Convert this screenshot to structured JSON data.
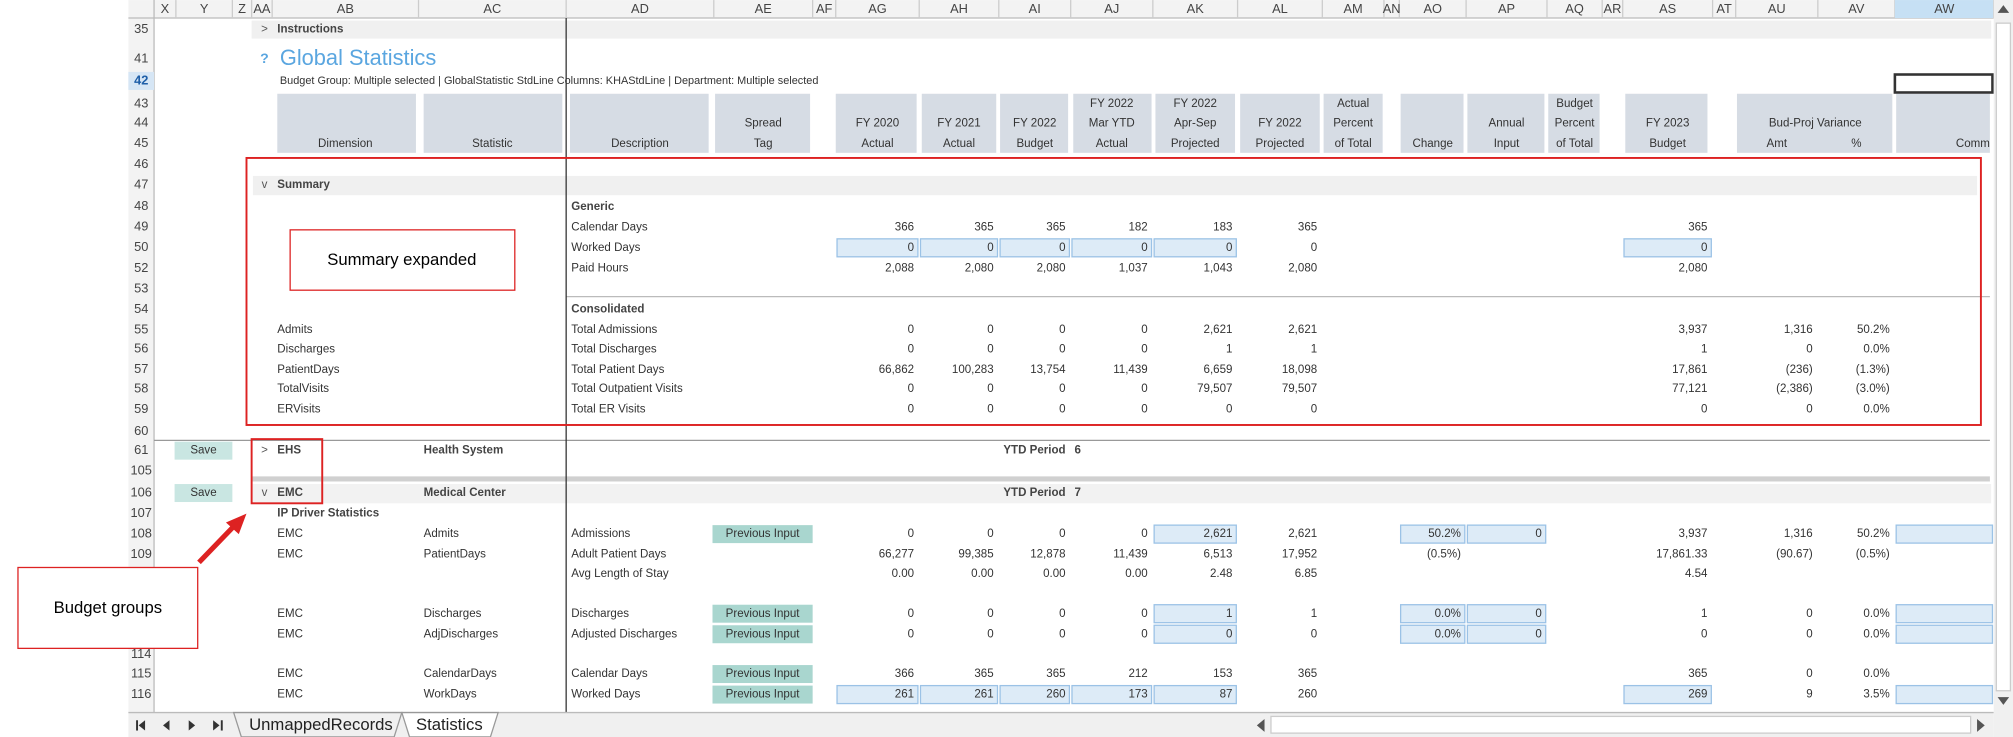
{
  "column_headers": [
    "X",
    "Y",
    "Z",
    "AA",
    "AB",
    "AC",
    "AD",
    "AE",
    "AF",
    "AG",
    "AH",
    "AI",
    "AJ",
    "AK",
    "AL",
    "AM",
    "AN",
    "AO",
    "AP",
    "AQ",
    "AR",
    "AS",
    "AT",
    "AU",
    "AV",
    "AW"
  ],
  "header": [
    {
      "col": "AB",
      "lines": [
        "Dimension"
      ]
    },
    {
      "col": "AC",
      "lines": [
        "Statistic"
      ]
    },
    {
      "col": "AD",
      "lines": [
        "Description"
      ]
    },
    {
      "col": "AE",
      "lines": [
        "Spread",
        "Tag"
      ]
    },
    {
      "col": "AG",
      "lines": [
        "FY 2020",
        "Actual"
      ]
    },
    {
      "col": "AH",
      "lines": [
        "FY 2021",
        "Actual"
      ]
    },
    {
      "col": "AI",
      "lines": [
        "FY 2022",
        "Budget"
      ]
    },
    {
      "col": "AJ",
      "lines": [
        "FY 2022",
        "Mar YTD",
        "Actual"
      ]
    },
    {
      "col": "AK",
      "lines": [
        "FY 2022",
        "Apr-Sep",
        "Projected"
      ]
    },
    {
      "col": "AL",
      "lines": [
        "FY 2022",
        "Projected"
      ]
    },
    {
      "col": "AM",
      "lines": [
        "Actual",
        "Percent",
        "of Total"
      ]
    },
    {
      "col": "AO",
      "lines": [
        "Change"
      ]
    },
    {
      "col": "AP",
      "lines": [
        "Annual",
        "Input"
      ]
    },
    {
      "col": "AQ",
      "lines": [
        "Budget",
        "Percent",
        "of Total"
      ]
    },
    {
      "col": "AS",
      "lines": [
        "FY 2023",
        "Budget"
      ]
    },
    {
      "col": "AU",
      "lines": [
        "Amt"
      ]
    },
    {
      "col": "AV",
      "lines": [
        "%"
      ]
    },
    {
      "col": "AW",
      "lines": [
        "Comm"
      ]
    }
  ],
  "variance_header": "Bud-Proj Variance",
  "rows": [
    {
      "num": "35",
      "cells": {
        "AA": ">",
        "AB": "Instructions"
      }
    },
    {
      "num": "41",
      "cells": {
        "AA": "?",
        "AB": "Global Statistics"
      }
    },
    {
      "num": "42",
      "cells": {
        "AB": "Budget Group: Multiple selected | GlobalStatistic StdLine Columns: KHAStdLine | Department: Multiple selected"
      }
    },
    {
      "num": "43"
    },
    {
      "num": "44"
    },
    {
      "num": "45"
    },
    {
      "num": "46"
    },
    {
      "num": "47",
      "cells": {
        "AA": "v",
        "AB": "Summary"
      }
    },
    {
      "num": "48",
      "cells": {
        "AD": "Generic"
      }
    },
    {
      "num": "49",
      "cells": {
        "AD": "Calendar Days",
        "AG": "366",
        "AH": "365",
        "AI": "365",
        "AJ": "182",
        "AK": "183",
        "AL": "365",
        "AS": "365"
      }
    },
    {
      "num": "50",
      "cells": {
        "AD": "Worked Days",
        "AG": "0",
        "AH": "0",
        "AI": "0",
        "AJ": "0",
        "AK": "0",
        "AL": "0",
        "AS": "0"
      }
    },
    {
      "num": "52",
      "cells": {
        "AD": "Paid Hours",
        "AG": "2,088",
        "AH": "2,080",
        "AI": "2,080",
        "AJ": "1,037",
        "AK": "1,043",
        "AL": "2,080",
        "AS": "2,080"
      }
    },
    {
      "num": "53"
    },
    {
      "num": "54",
      "cells": {
        "AD": "Consolidated"
      }
    },
    {
      "num": "55",
      "cells": {
        "AB": "Admits",
        "AD": "Total Admissions",
        "AG": "0",
        "AH": "0",
        "AI": "0",
        "AJ": "0",
        "AK": "2,621",
        "AL": "2,621",
        "AS": "3,937",
        "AU": "1,316",
        "AV": "50.2%"
      }
    },
    {
      "num": "56",
      "cells": {
        "AB": "Discharges",
        "AD": "Total Discharges",
        "AG": "0",
        "AH": "0",
        "AI": "0",
        "AJ": "0",
        "AK": "1",
        "AL": "1",
        "AS": "1",
        "AU": "0",
        "AV": "0.0%"
      }
    },
    {
      "num": "57",
      "cells": {
        "AB": "PatientDays",
        "AD": "Total Patient Days",
        "AG": "66,862",
        "AH": "100,283",
        "AI": "13,754",
        "AJ": "11,439",
        "AK": "6,659",
        "AL": "18,098",
        "AS": "17,861",
        "AU": "(236)",
        "AV": "(1.3%)"
      }
    },
    {
      "num": "58",
      "cells": {
        "AB": "TotalVisits",
        "AD": "Total Outpatient Visits",
        "AG": "0",
        "AH": "0",
        "AI": "0",
        "AJ": "0",
        "AK": "79,507",
        "AL": "79,507",
        "AS": "77,121",
        "AU": "(2,386)",
        "AV": "(3.0%)"
      }
    },
    {
      "num": "59",
      "cells": {
        "AB": "ERVisits",
        "AD": "Total ER Visits",
        "AG": "0",
        "AH": "0",
        "AI": "0",
        "AJ": "0",
        "AK": "0",
        "AL": "0",
        "AS": "0",
        "AU": "0",
        "AV": "0.0%"
      }
    },
    {
      "num": "60"
    },
    {
      "num": "61",
      "cells": {
        "Y": "Save",
        "AA": ">",
        "AB": "EHS",
        "AC": "Health System",
        "AI": "YTD Period",
        "AJ": "6"
      }
    },
    {
      "num": "105"
    },
    {
      "num": "106",
      "cells": {
        "Y": "Save",
        "AA": "v",
        "AB": "EMC",
        "AC": "Medical Center",
        "AI": "YTD Period",
        "AJ": "7"
      }
    },
    {
      "num": "107",
      "cells": {
        "AB": "IP Driver Statistics"
      }
    },
    {
      "num": "108",
      "cells": {
        "AB": "EMC",
        "AC": "Admits",
        "AD": "Admissions",
        "AE": "Previous Input",
        "AG": "0",
        "AH": "0",
        "AI": "0",
        "AJ": "0",
        "AK": "2,621",
        "AL": "2,621",
        "AO": "50.2%",
        "AP": "0",
        "AS": "3,937",
        "AU": "1,316",
        "AV": "50.2%"
      }
    },
    {
      "num": "109",
      "cells": {
        "AB": "EMC",
        "AC": "PatientDays",
        "AD": "Adult Patient Days",
        "AG": "66,277",
        "AH": "99,385",
        "AI": "12,878",
        "AJ": "11,439",
        "AK": "6,513",
        "AL": "17,952",
        "AO": "(0.5%)",
        "AS": "17,861.33",
        "AU": "(90.67)",
        "AV": "(0.5%)"
      }
    },
    {
      "cells": {
        "AD": "Avg Length of Stay",
        "AG": "0.00",
        "AH": "0.00",
        "AI": "0.00",
        "AJ": "0.00",
        "AK": "2.48",
        "AL": "6.85",
        "AS": "4.54"
      }
    },
    {},
    {
      "cells": {
        "AB": "EMC",
        "AC": "Discharges",
        "AD": "Discharges",
        "AE": "Previous Input",
        "AG": "0",
        "AH": "0",
        "AI": "0",
        "AJ": "0",
        "AK": "1",
        "AL": "1",
        "AO": "0.0%",
        "AP": "0",
        "AS": "1",
        "AU": "0",
        "AV": "0.0%"
      }
    },
    {
      "cells": {
        "AB": "EMC",
        "AC": "AdjDischarges",
        "AD": "Adjusted Discharges",
        "AE": "Previous Input",
        "AG": "0",
        "AH": "0",
        "AI": "0",
        "AJ": "0",
        "AK": "0",
        "AL": "0",
        "AO": "0.0%",
        "AP": "0",
        "AS": "0",
        "AU": "0",
        "AV": "0.0%"
      }
    },
    {
      "num": "114"
    },
    {
      "num": "115",
      "cells": {
        "AB": "EMC",
        "AC": "CalendarDays",
        "AD": "Calendar Days",
        "AE": "Previous Input",
        "AG": "366",
        "AH": "365",
        "AI": "365",
        "AJ": "212",
        "AK": "153",
        "AL": "365",
        "AS": "365",
        "AU": "0",
        "AV": "0.0%"
      }
    },
    {
      "num": "116",
      "cells": {
        "AB": "EMC",
        "AC": "WorkDays",
        "AD": "Worked Days",
        "AE": "Previous Input",
        "AG": "261",
        "AH": "261",
        "AI": "260",
        "AJ": "173",
        "AK": "87",
        "AL": "260",
        "AS": "269",
        "AU": "9",
        "AV": "3.5%"
      }
    }
  ],
  "annotations": {
    "summary": "Summary expanded",
    "budget": "Budget groups"
  },
  "tabs": [
    "UnmappedRecords",
    "Statistics"
  ]
}
